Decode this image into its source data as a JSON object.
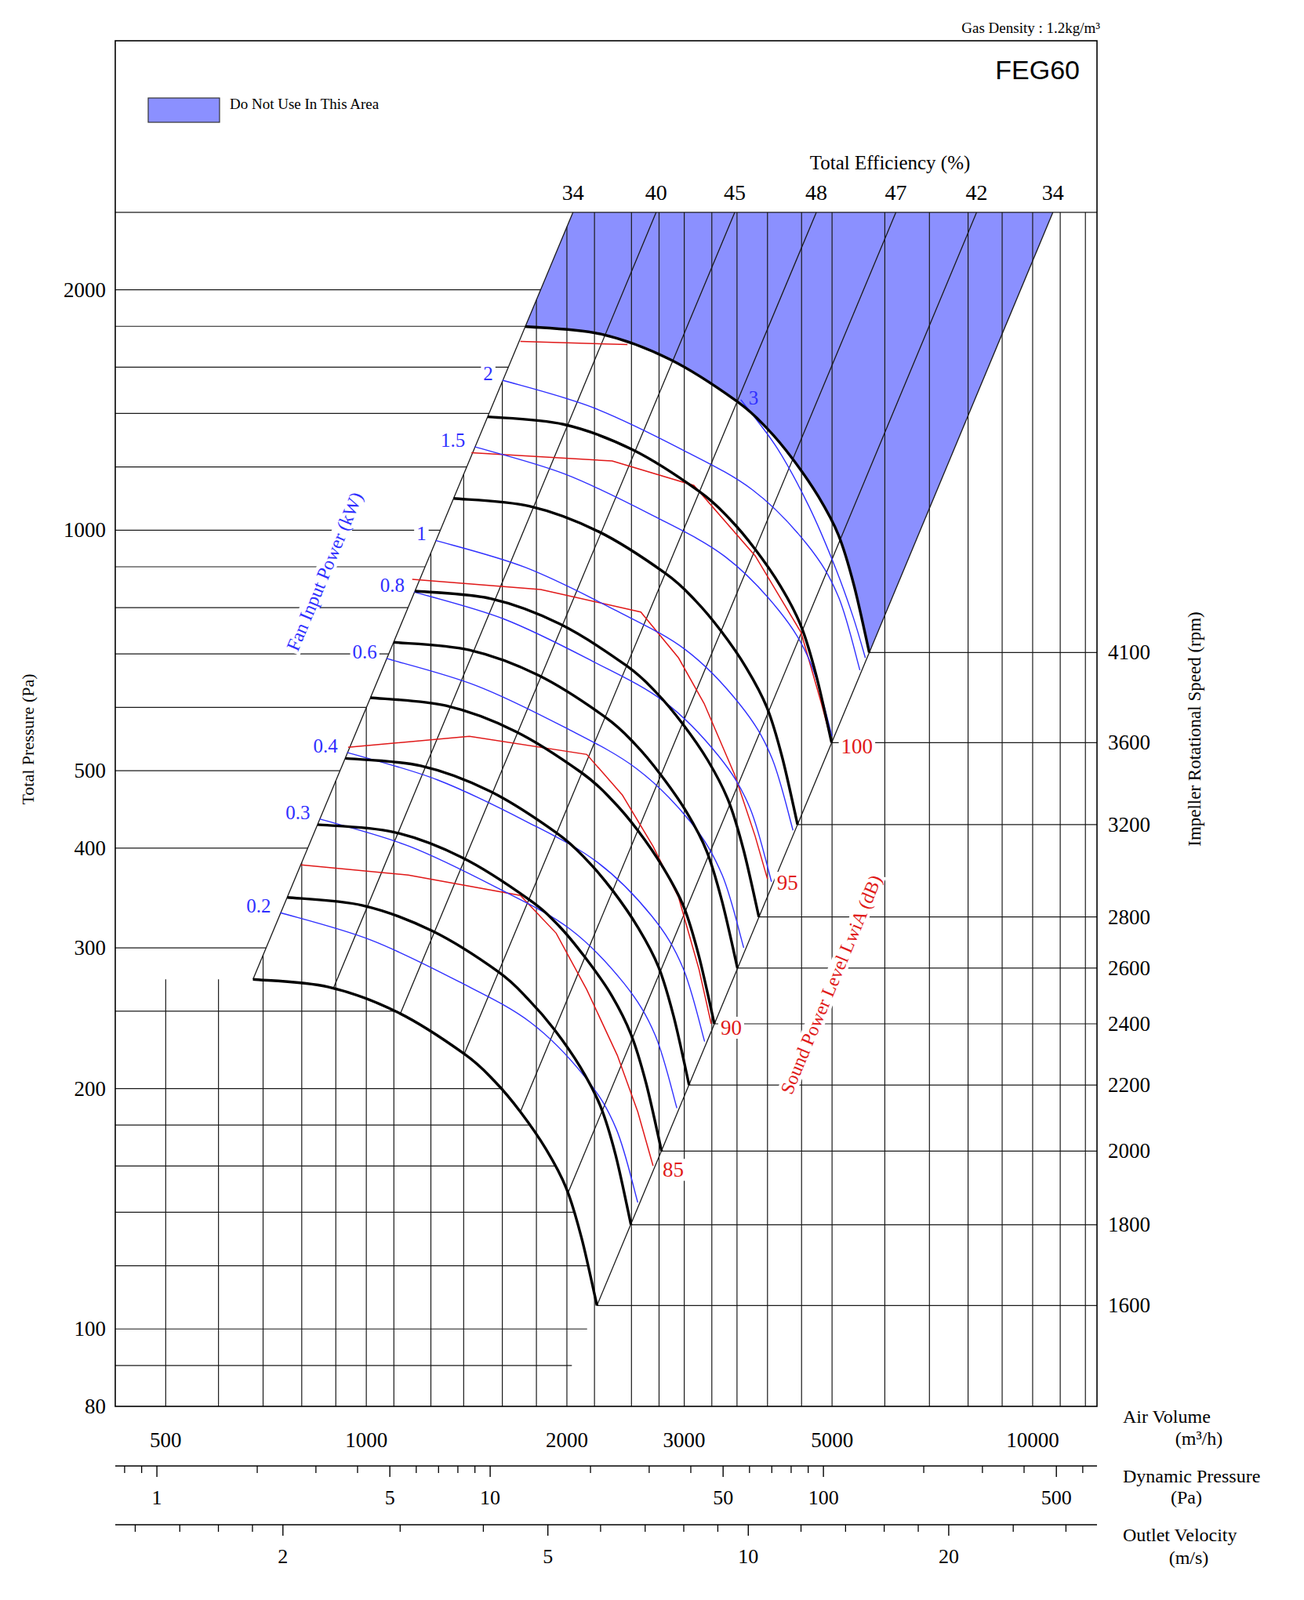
{
  "chart_data": {
    "type": "fan_performance",
    "title": "FEG60",
    "subtitle": "Gas Density : 1.2kg/m³",
    "legend_label": "Do Not Use In This Area",
    "legend": "top-left",
    "color": "#8b90ff",
    "log": true,
    "grid": true,
    "x_label": "Air Volume",
    "x_unit": "(m³/h)",
    "xlim": [
      420,
      12490
    ],
    "xticks": [
      500,
      1000,
      2000,
      3000,
      5000,
      10000
    ],
    "xgrid": [
      500,
      600,
      700,
      800,
      900,
      1000,
      1100,
      1250,
      1400,
      1600,
      1800,
      2000,
      2200,
      2500,
      2750,
      3000,
      3300,
      3600,
      4000,
      4500,
      5000,
      6000,
      7000,
      8000,
      9000,
      10000,
      11000,
      12000
    ],
    "y_label": "Total Pressure (Pa)",
    "ylim": [
      80,
      4100
    ],
    "yticks": [
      80,
      100,
      200,
      300,
      400,
      500,
      1000,
      2000
    ],
    "ygrid": [
      90,
      100,
      120,
      140,
      160,
      180,
      200,
      250,
      300,
      400,
      500,
      600,
      700,
      800,
      900,
      1000,
      1200,
      1400,
      1600,
      1800,
      2000
    ],
    "y2_label": "Impeller Rotational Speed (rpm)",
    "efficiency_label": "Total Efficiency (%)",
    "efficiency_pressure": 2500,
    "efficiency_lines": [
      {
        "efficiency": 34,
        "air_volume": 2042
      },
      {
        "efficiency": 40,
        "air_volume": 2722
      },
      {
        "efficiency": 45,
        "air_volume": 3572
      },
      {
        "efficiency": 48,
        "air_volume": 4735
      },
      {
        "efficiency": 47,
        "air_volume": 6233
      },
      {
        "efficiency": 42,
        "air_volume": 8238
      },
      {
        "efficiency": 34,
        "air_volume": 10723
      }
    ],
    "speed_curves": [
      {
        "speed": 1600,
        "color": "#000000",
        "x": [
          676,
          878,
          1116,
          1403,
          1560,
          1703,
          1860,
          1996,
          2104,
          2219
        ],
        "y": [
          274,
          268,
          249,
          221,
          204,
          187,
          168,
          150,
          130,
          107
        ]
      },
      {
        "speed": 1800,
        "color": "#000000",
        "x": [
          761,
          988,
          1256,
          1578,
          1755,
          1916,
          2093,
          2246,
          2367,
          2496
        ],
        "y": [
          347,
          339,
          315,
          280,
          258,
          237,
          213,
          190,
          165,
          135
        ]
      },
      {
        "speed": 2000,
        "color": "#000000",
        "x": [
          845,
          1098,
          1395,
          1754,
          1950,
          2129,
          2325,
          2495,
          2630,
          2774
        ],
        "y": [
          428,
          419,
          389,
          345,
          319,
          292,
          263,
          234,
          203,
          167
        ]
      },
      {
        "speed": 2200,
        "color": "#000000",
        "x": [
          930,
          1207,
          1535,
          1929,
          2145,
          2342,
          2558,
          2745,
          2893,
          3051
        ],
        "y": [
          518,
          507,
          471,
          418,
          386,
          354,
          318,
          284,
          246,
          202
        ]
      },
      {
        "speed": 2400,
        "color": "#000000",
        "x": [
          1014,
          1317,
          1674,
          2105,
          2340,
          2555,
          2790,
          2994,
          3156,
          3329
        ],
        "y": [
          617,
          603,
          560,
          497,
          459,
          421,
          378,
          338,
          293,
          241
        ]
      },
      {
        "speed": 2600,
        "color": "#000000",
        "x": [
          1099,
          1427,
          1814,
          2280,
          2535,
          2767,
          3023,
          3244,
          3419,
          3606
        ],
        "y": [
          724,
          708,
          658,
          584,
          539,
          494,
          444,
          396,
          343,
          283
        ]
      },
      {
        "speed": 2800,
        "color": "#000000",
        "x": [
          1183,
          1537,
          1953,
          2455,
          2730,
          2980,
          3255,
          3493,
          3682,
          3883
        ],
        "y": [
          839,
          821,
          763,
          677,
          625,
          573,
          515,
          459,
          398,
          328
        ]
      },
      {
        "speed": 3200,
        "color": "#000000",
        "x": [
          1352,
          1756,
          2232,
          2806,
          3120,
          3406,
          3720,
          3992,
          4208,
          4438
        ],
        "y": [
          1096,
          1072,
          996,
          884,
          816,
          748,
          672,
          600,
          520,
          428
        ]
      },
      {
        "speed": 3600,
        "color": "#000000",
        "x": [
          1521,
          1976,
          2511,
          3157,
          3510,
          3832,
          4185,
          4491,
          4734,
          4993
        ],
        "y": [
          1387,
          1357,
          1261,
          1119,
          1033,
          947,
          851,
          759,
          658,
          542
        ]
      },
      {
        "speed": 4100,
        "color": "#000000",
        "x": [
          1732,
          2250,
          2860,
          3595,
          3998,
          4364,
          4766,
          5115,
          5392,
          5686
        ],
        "y": [
          1799,
          1760,
          1635,
          1451,
          1340,
          1228,
          1103,
          985,
          854,
          703
        ]
      }
    ],
    "power_label": "Fan Input Power (kW)",
    "power_curves": [
      {
        "power": 0.2,
        "color": "#2f2fff",
        "x": [
          743,
          1014,
          1379,
          1764,
          2127,
          2372,
          2555
        ],
        "y": [
          332,
          307,
          272,
          242,
          207,
          178,
          144
        ]
      },
      {
        "power": 0.3,
        "color": "#2f2fff",
        "x": [
          851,
          1161,
          1579,
          2019,
          2435,
          2715,
          2925
        ],
        "y": [
          435,
          402,
          356,
          317,
          271,
          233,
          189
        ]
      },
      {
        "power": 0.4,
        "color": "#2f2fff",
        "x": [
          936,
          1278,
          1737,
          2222,
          2680,
          2988,
          3219
        ],
        "y": [
          527,
          487,
          432,
          384,
          329,
          283,
          229
        ]
      },
      {
        "power": 0.6,
        "color": "#2f2fff",
        "x": [
          1072,
          1462,
          1989,
          2544,
          3068,
          3421,
          3685
        ],
        "y": [
          691,
          639,
          566,
          503,
          431,
          370,
          300
        ]
      },
      {
        "power": 0.8,
        "color": "#2f2fff",
        "x": [
          1179,
          1610,
          2189,
          2800,
          3376,
          3765,
          4056
        ],
        "y": [
          837,
          774,
          685,
          610,
          522,
          449,
          363
        ]
      },
      {
        "power": 1,
        "color": "#2f2fff",
        "x": [
          1271,
          1734,
          2358,
          3016,
          3637,
          4056,
          4369
        ],
        "y": [
          971,
          898,
          795,
          708,
          605,
          520,
          421
        ]
      },
      {
        "power": 1.5,
        "color": "#2f2fff",
        "x": [
          1454,
          1985,
          2699,
          3453,
          4163,
          4643,
          5001
        ],
        "y": [
          1272,
          1176,
          1042,
          927,
          793,
          682,
          552
        ]
      },
      {
        "power": 2,
        "color": "#2f2fff",
        "x": [
          1601,
          2185,
          2971,
          3800,
          4582,
          5110,
          5505
        ],
        "y": [
          1541,
          1425,
          1263,
          1123,
          961,
          826,
          668
        ]
      },
      {
        "power": 3,
        "color": "#2f2fff",
        "x": [
          3648,
          4141,
          4619,
          5046,
          5377,
          5610
        ],
        "y": [
          1457,
          1265,
          1070,
          902,
          779,
          692
        ]
      }
    ],
    "sound_label": "Sound Power Level LwiA (dB)",
    "sound_curves": [
      {
        "level": 85,
        "color": "#e01818",
        "x": [
          798,
          1156,
          1703,
          1927,
          2142,
          2381,
          2555,
          2694
        ],
        "y": [
          381,
          370,
          349,
          313,
          266,
          220,
          187,
          160
        ]
      },
      {
        "level": 90,
        "color": "#e01818",
        "x": [
          939,
          1428,
          2142,
          2423,
          2694,
          2942,
          3157,
          3293
        ],
        "y": [
          535,
          552,
          524,
          466,
          402,
          347,
          282,
          241
        ]
      },
      {
        "level": 95,
        "color": "#e01818",
        "x": [
          1172,
          1827,
          2582,
          2942,
          3213,
          3572,
          3833,
          3999
        ],
        "y": [
          868,
          843,
          790,
          692,
          607,
          494,
          414,
          366
        ]
      },
      {
        "level": 100,
        "color": "#e01818",
        "x": [
          1438,
          2339,
          3102,
          3833,
          4491,
          4819,
          4993
        ],
        "y": [
          1250,
          1221,
          1138,
          929,
          745,
          607,
          543
        ]
      },
      {
        "color": "#e01818",
        "x": [
          1703,
          2466
        ],
        "y": [
          1723,
          1708
        ]
      }
    ],
    "dynamic_pressure_axis": {
      "label": "Dynamic Pressure",
      "unit": "(Pa)",
      "lim": [
        0.75,
        662
      ],
      "ticks": [
        1,
        5,
        10,
        50,
        100,
        500
      ],
      "minor_ticks": [
        0.8,
        0.9,
        2,
        3,
        4,
        6,
        7,
        8,
        9,
        20,
        30,
        40,
        60,
        70,
        80,
        90,
        200,
        300,
        400,
        600
      ]
    },
    "velocity_axis": {
      "label": "Outlet Velocity",
      "unit": "(m/s)",
      "lim": [
        1.12,
        33.4
      ],
      "ticks": [
        2,
        5,
        10,
        20
      ],
      "minor_ticks": [
        1.2,
        1.4,
        1.6,
        1.8,
        3,
        4,
        6,
        7,
        8,
        9,
        12,
        14,
        16,
        18,
        25,
        30
      ]
    }
  }
}
